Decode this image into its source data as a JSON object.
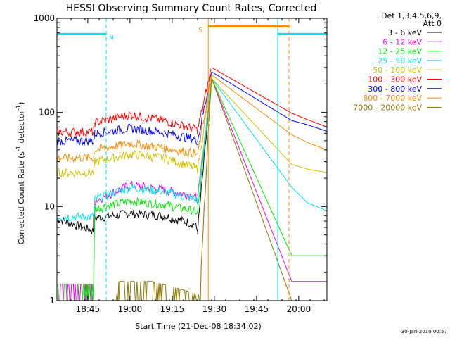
{
  "chart_data": {
    "type": "line",
    "title": "HESSI Observing Summary Count Rates, Corrected",
    "xlabel": "Start Time (21-Dec-08 18:34:02)",
    "ylabel_main": "Corrected Count Rate (s",
    "ylabel_sup1": "-1",
    "ylabel_mid": " detector",
    "ylabel_sup2": "-1",
    "ylabel_end": ")",
    "footer": "30-Jan-2010 00:57",
    "y_scale": "log",
    "ylim": [
      1,
      1000
    ],
    "y_ticks": [
      {
        "value": 1,
        "label": "1"
      },
      {
        "value": 10,
        "label": "10"
      },
      {
        "value": 100,
        "label": "100"
      },
      {
        "value": 1000,
        "label": "1000"
      }
    ],
    "x_unit": "minutes after 18:34:02",
    "xlim": [
      0,
      96
    ],
    "x_ticks": [
      {
        "value": 10.97,
        "label": "18:45"
      },
      {
        "value": 25.97,
        "label": "19:00"
      },
      {
        "value": 40.97,
        "label": "19:15"
      },
      {
        "value": 55.97,
        "label": "19:30"
      },
      {
        "value": 70.97,
        "label": "19:45"
      },
      {
        "value": 85.97,
        "label": "20:00"
      }
    ],
    "legend_header": [
      "Det 1,3,4,5,6,9,",
      "Att 0"
    ],
    "flags": [
      {
        "label": "N",
        "color": "#00e5ee",
        "x_start": 0,
        "x_end": 17.5,
        "y": 680,
        "boundaries": [
          0,
          17.5,
          78.5,
          96
        ],
        "segments": [
          [
            0,
            17.5
          ],
          [
            78.5,
            96
          ]
        ]
      },
      {
        "label": "S",
        "color": "#ff8c00",
        "x_start": 53.8,
        "x_end": 82.5,
        "y": 820,
        "boundaries": [
          53.8,
          82.5
        ],
        "segments": [
          [
            53.8,
            82.5
          ]
        ]
      }
    ],
    "gap": [
      55.5,
      83.5
    ],
    "series": [
      {
        "name": "3 - 6 keV",
        "color": "#000000",
        "values": [
          0,
          7.5,
          13,
          5.5,
          13,
          7.5,
          26,
          8.5,
          38,
          8,
          49,
          6.5,
          50,
          5.5,
          55,
          230
        ]
      },
      {
        "name": "6 - 12 keV",
        "color": "#ee00ee",
        "values": [
          0,
          1.5,
          13,
          1.5,
          13.5,
          11.5,
          26,
          17,
          38,
          15,
          49,
          13,
          50,
          12,
          55,
          230,
          83.5,
          1.6,
          96,
          1.6
        ]
      },
      {
        "name": "12 - 25 keV",
        "color": "#00ee00",
        "values": [
          0,
          1.5,
          13,
          1.5,
          13.5,
          9.5,
          26,
          11.5,
          38,
          10.5,
          49,
          9,
          50,
          8.5,
          55,
          230,
          83.5,
          3,
          96,
          3
        ]
      },
      {
        "name": "25 - 50 keV",
        "color": "#00e5ee",
        "values": [
          0,
          7.8,
          13,
          7.8,
          13.5,
          12,
          26,
          16,
          38,
          14.5,
          49,
          12,
          50,
          11.5,
          55,
          230,
          83.5,
          16,
          89,
          11,
          96,
          9
        ]
      },
      {
        "name": "50 - 100 keV",
        "color": "#d2c100",
        "values": [
          0,
          23,
          13,
          23,
          13.5,
          30,
          26,
          36,
          38,
          33,
          49,
          26,
          50,
          25,
          55,
          230,
          83.5,
          28,
          89,
          25,
          96,
          23
        ]
      },
      {
        "name": "100 - 300 keV",
        "color": "#ff0000",
        "values": [
          0,
          62,
          13,
          62,
          13.5,
          78,
          26,
          95,
          38,
          82,
          49,
          67,
          50,
          65,
          55,
          300,
          83.5,
          98,
          89,
          84,
          96,
          70
        ]
      },
      {
        "name": "300 - 800 keV",
        "color": "#0000ff",
        "values": [
          0,
          50,
          13,
          50,
          13.5,
          60,
          26,
          68,
          38,
          61,
          49,
          52,
          50,
          50,
          55,
          270,
          83.5,
          82,
          89,
          74,
          96,
          63
        ]
      },
      {
        "name": "800 - 7000 keV",
        "color": "#ff8c00",
        "values": [
          0,
          33,
          13,
          33,
          13.5,
          40,
          26,
          47,
          38,
          42,
          49,
          37,
          50,
          36,
          55,
          250,
          83.5,
          58,
          89,
          48,
          96,
          40
        ]
      },
      {
        "name": "7000 - 20000 keV",
        "color": "#8b7500",
        "values": [
          0,
          1.0,
          21,
          1.0,
          22,
          1.6,
          34,
          1.6,
          49,
          1.2,
          50,
          1.0,
          51,
          1.6,
          54,
          80,
          55,
          230,
          83.5,
          1.0,
          96,
          1.0
        ]
      }
    ]
  }
}
